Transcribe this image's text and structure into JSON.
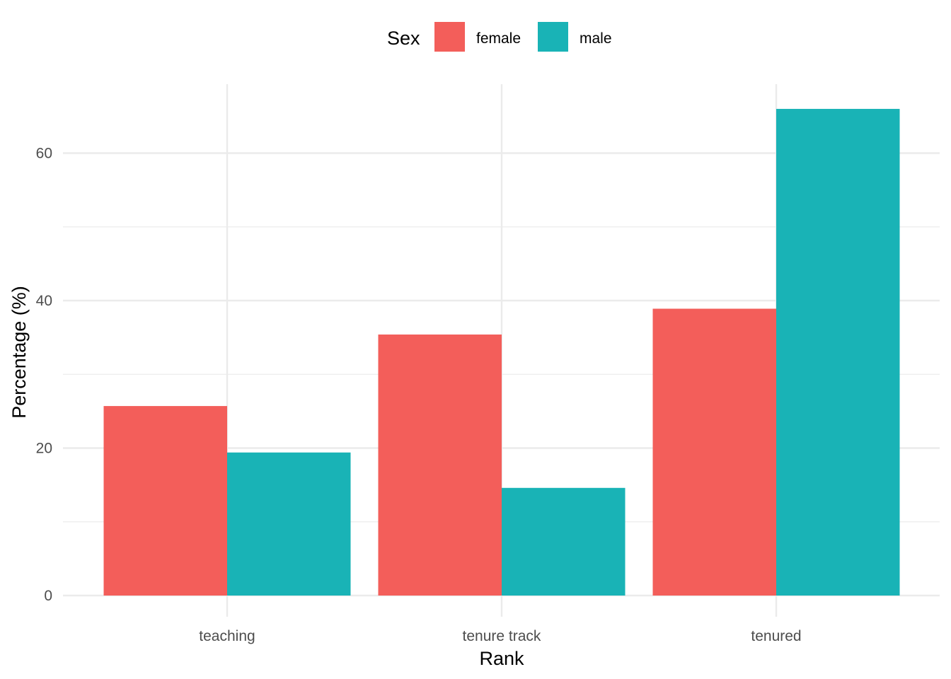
{
  "chart_data": {
    "type": "bar",
    "categories": [
      "teaching",
      "tenure track",
      "tenured"
    ],
    "series": [
      {
        "name": "female",
        "values": [
          25.7,
          35.4,
          38.9
        ],
        "color": "#F35E5A"
      },
      {
        "name": "male",
        "values": [
          19.4,
          14.6,
          66.0
        ],
        "color": "#19B3B6"
      }
    ],
    "xlabel": "Rank",
    "ylabel": "Percentage (%)",
    "ylim": [
      0,
      69
    ],
    "yticks": [
      0,
      20,
      40,
      60
    ],
    "grid": true,
    "legend": {
      "title": "Sex",
      "position": "top"
    }
  }
}
